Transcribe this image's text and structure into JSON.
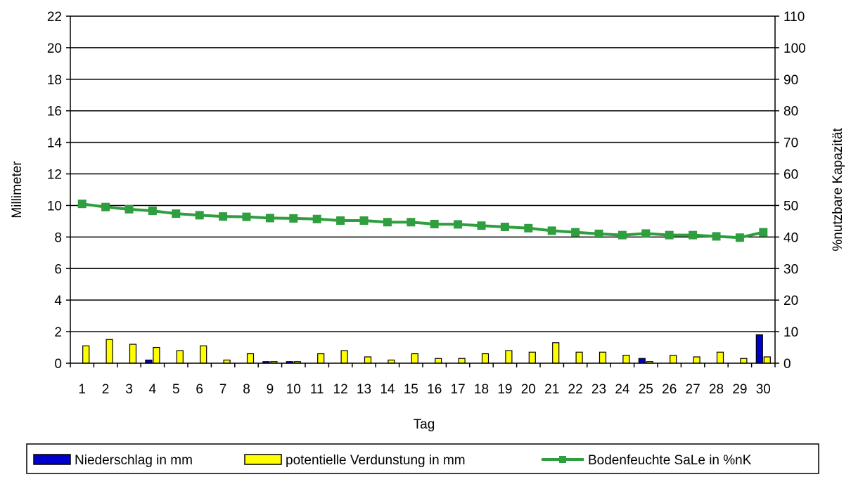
{
  "chart_data": {
    "type": "bar",
    "combo": "bar + line (secondary axis)",
    "xlabel": "Tag",
    "ylabel": "Millimeter",
    "y2label": "%nutzbare Kapazität",
    "ylim": [
      0,
      22
    ],
    "y_ticks": [
      0,
      2,
      4,
      6,
      8,
      10,
      12,
      14,
      16,
      18,
      20,
      22
    ],
    "y2lim": [
      0,
      110
    ],
    "y2_ticks": [
      0,
      10,
      20,
      30,
      40,
      50,
      60,
      70,
      80,
      90,
      100,
      110
    ],
    "grid": "horizontal",
    "legend_position": "bottom",
    "categories": [
      "1",
      "2",
      "3",
      "4",
      "5",
      "6",
      "7",
      "8",
      "9",
      "10",
      "11",
      "12",
      "13",
      "14",
      "15",
      "16",
      "17",
      "18",
      "19",
      "20",
      "21",
      "22",
      "23",
      "24",
      "25",
      "26",
      "27",
      "28",
      "29",
      "30"
    ],
    "series": [
      {
        "name": "Niederschlag in mm",
        "axis": "left",
        "kind": "bar",
        "color": "#0000cc",
        "values": [
          0,
          0,
          0,
          0.2,
          0,
          0,
          0,
          0,
          0.1,
          0.1,
          0,
          0,
          0,
          0,
          0,
          0,
          0,
          0,
          0,
          0,
          0,
          0,
          0,
          0,
          0.3,
          0,
          0,
          0,
          0,
          1.8
        ]
      },
      {
        "name": "potentielle Verdunstung in mm",
        "axis": "left",
        "kind": "bar",
        "color": "#ffff00",
        "values": [
          1.1,
          1.5,
          1.2,
          1.0,
          0.8,
          1.1,
          0.2,
          0.6,
          0.1,
          0.1,
          0.6,
          0.8,
          0.4,
          0.2,
          0.6,
          0.3,
          0.3,
          0.6,
          0.8,
          0.7,
          1.3,
          0.7,
          0.7,
          0.5,
          0.1,
          0.5,
          0.4,
          0.7,
          0.3,
          0.4
        ]
      },
      {
        "name": "Bodenfeuchte SaLe in %nK",
        "axis": "right",
        "kind": "line",
        "color": "#2e9e3e",
        "values": [
          50.5,
          49.5,
          48.8,
          48.3,
          47.4,
          46.9,
          46.5,
          46.4,
          46.0,
          45.9,
          45.7,
          45.2,
          45.2,
          44.7,
          44.7,
          44.1,
          44.0,
          43.6,
          43.2,
          42.8,
          42.0,
          41.5,
          41.0,
          40.6,
          41.1,
          40.6,
          40.6,
          40.2,
          39.8,
          41.5
        ]
      }
    ]
  }
}
